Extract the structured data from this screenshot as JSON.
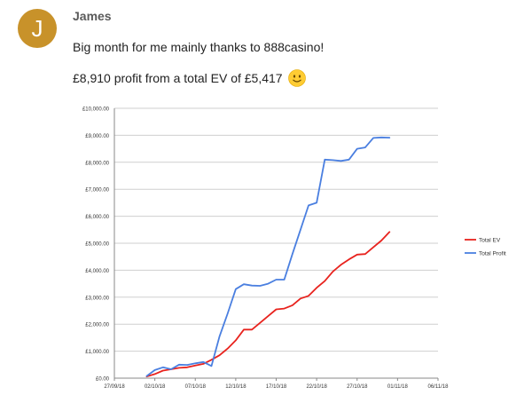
{
  "post": {
    "avatar_letter": "J",
    "avatar_color": "#c8922a",
    "author": "James",
    "line1": "Big month for me mainly thanks to 888casino!",
    "line2": "£8,910 profit from a total EV of £5,417",
    "emoji": "slightly-smiling-face-icon"
  },
  "chart_data": {
    "type": "line",
    "title": "",
    "xlabel": "",
    "ylabel": "",
    "x_ticks": [
      "27/09/18",
      "02/10/18",
      "07/10/18",
      "12/10/18",
      "17/10/18",
      "22/10/18",
      "27/10/18",
      "01/11/18",
      "06/11/18"
    ],
    "y_ticks": [
      "£0.00",
      "£1,000.00",
      "£2,000.00",
      "£3,000.00",
      "£4,000.00",
      "£5,000.00",
      "£6,000.00",
      "£7,000.00",
      "£8,000.00",
      "£9,000.00",
      "£10,000.00"
    ],
    "xlim": [
      "27/09/18",
      "06/11/18"
    ],
    "ylim": [
      0,
      10000
    ],
    "grid": "horizontal",
    "legend_position": "right",
    "series": [
      {
        "name": "Total EV",
        "color": "#e8231e",
        "points": [
          [
            "01/10/18",
            60
          ],
          [
            "02/10/18",
            150
          ],
          [
            "03/10/18",
            280
          ],
          [
            "04/10/18",
            330
          ],
          [
            "05/10/18",
            380
          ],
          [
            "06/10/18",
            400
          ],
          [
            "07/10/18",
            470
          ],
          [
            "08/10/18",
            530
          ],
          [
            "09/10/18",
            680
          ],
          [
            "10/10/18",
            850
          ],
          [
            "11/10/18",
            1100
          ],
          [
            "12/10/18",
            1400
          ],
          [
            "13/10/18",
            1800
          ],
          [
            "14/10/18",
            1800
          ],
          [
            "15/10/18",
            2050
          ],
          [
            "16/10/18",
            2300
          ],
          [
            "17/10/18",
            2550
          ],
          [
            "18/10/18",
            2580
          ],
          [
            "19/10/18",
            2700
          ],
          [
            "20/10/18",
            2950
          ],
          [
            "21/10/18",
            3050
          ],
          [
            "22/10/18",
            3350
          ],
          [
            "23/10/18",
            3600
          ],
          [
            "24/10/18",
            3950
          ],
          [
            "25/10/18",
            4200
          ],
          [
            "26/10/18",
            4400
          ],
          [
            "27/10/18",
            4580
          ],
          [
            "28/10/18",
            4600
          ],
          [
            "29/10/18",
            4850
          ],
          [
            "30/10/18",
            5100
          ],
          [
            "31/10/18",
            5417
          ]
        ]
      },
      {
        "name": "Total Profit",
        "color": "#4a7fe0",
        "points": [
          [
            "01/10/18",
            80
          ],
          [
            "02/10/18",
            300
          ],
          [
            "03/10/18",
            400
          ],
          [
            "04/10/18",
            330
          ],
          [
            "05/10/18",
            500
          ],
          [
            "06/10/18",
            490
          ],
          [
            "07/10/18",
            550
          ],
          [
            "08/10/18",
            600
          ],
          [
            "09/10/18",
            450
          ],
          [
            "10/10/18",
            1550
          ],
          [
            "11/10/18",
            2400
          ],
          [
            "12/10/18",
            3300
          ],
          [
            "13/10/18",
            3480
          ],
          [
            "14/10/18",
            3430
          ],
          [
            "15/10/18",
            3420
          ],
          [
            "16/10/18",
            3500
          ],
          [
            "17/10/18",
            3650
          ],
          [
            "18/10/18",
            3650
          ],
          [
            "19/10/18",
            4600
          ],
          [
            "20/10/18",
            5500
          ],
          [
            "21/10/18",
            6400
          ],
          [
            "22/10/18",
            6500
          ],
          [
            "23/10/18",
            8100
          ],
          [
            "24/10/18",
            8080
          ],
          [
            "25/10/18",
            8050
          ],
          [
            "26/10/18",
            8100
          ],
          [
            "27/10/18",
            8500
          ],
          [
            "28/10/18",
            8550
          ],
          [
            "29/10/18",
            8900
          ],
          [
            "30/10/18",
            8920
          ],
          [
            "31/10/18",
            8910
          ]
        ]
      }
    ]
  }
}
